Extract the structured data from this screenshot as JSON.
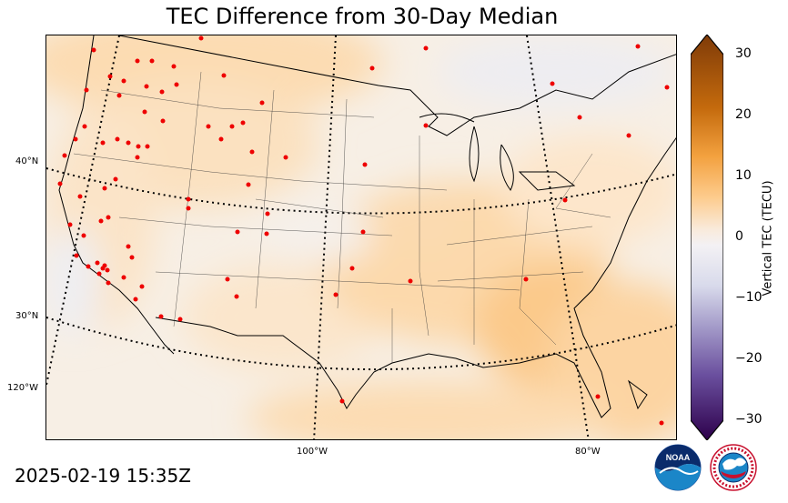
{
  "title": "TEC Difference from 30-Day Median",
  "timestamp": "2025-02-19 15:35Z",
  "lat_labels": [
    "40°N",
    "30°N",
    "120°W"
  ],
  "lon_labels": [
    "100°W",
    "80°W"
  ],
  "colorbar": {
    "label": "Vertical TEC (TECU)",
    "ticks": [
      "30",
      "20",
      "10",
      "0",
      "−10",
      "−20",
      "−30"
    ],
    "min": -30,
    "max": 30
  },
  "logos": {
    "noaa_text": "NOAA",
    "nws_text": "NATIONAL WEATHER SERVICE"
  },
  "colors": {
    "positive_high": "#7f3b08",
    "positive_mid": "#e08214",
    "positive_low": "#fdcb8c",
    "neutral": "#f7f3ef",
    "negative_low": "#d8daeb",
    "negative_mid": "#8073ac",
    "negative_high": "#2d004b",
    "station": "#ee0000"
  }
}
